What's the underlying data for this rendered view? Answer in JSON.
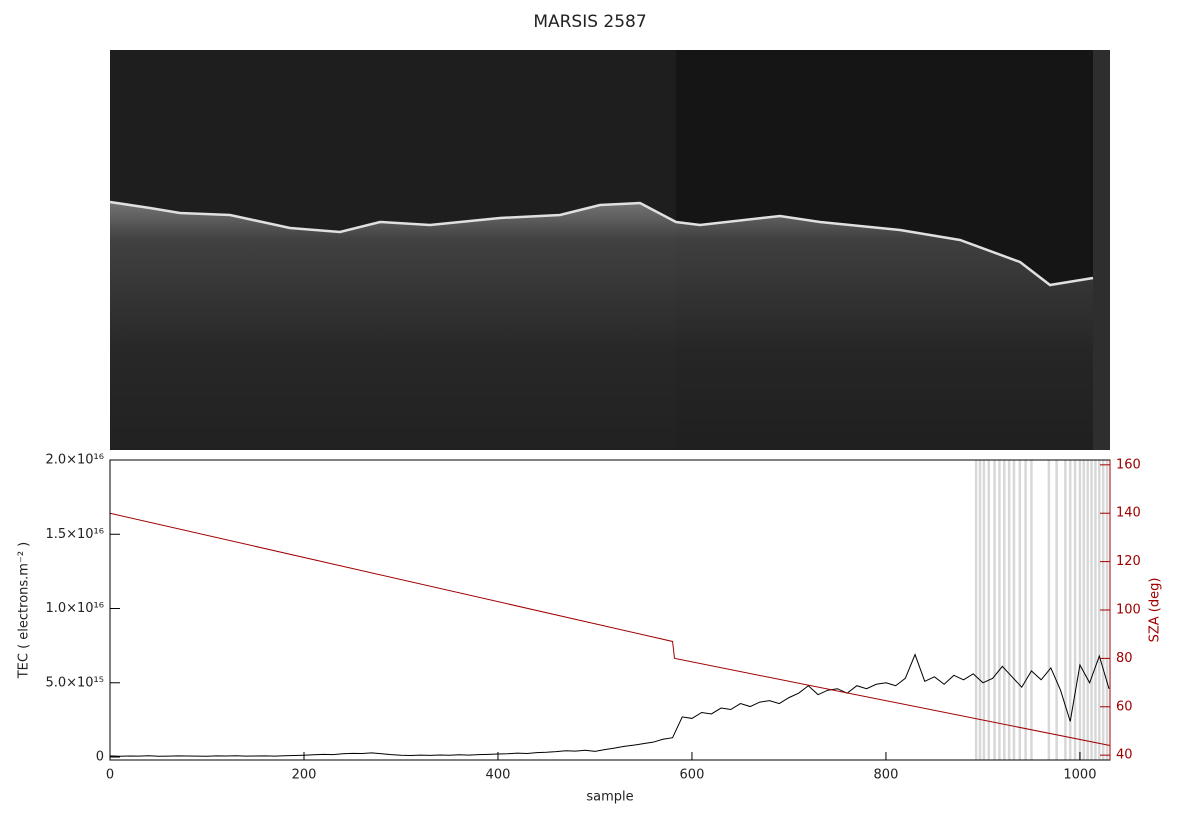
{
  "chart_data": {
    "type": "line",
    "title": "MARSIS 2587",
    "xlabel": "sample",
    "ylabel": "TEC ( electrons.m⁻² )",
    "y2label": "SZA (deg)",
    "xlim": [
      0,
      1031
    ],
    "xticks": [
      0,
      200,
      400,
      600,
      800,
      1000
    ],
    "ylim": [
      -200000000000000.0,
      2e+16
    ],
    "yticks": [
      0,
      {
        "value": 5000000000000000.0,
        "label": "5.0×10¹⁵"
      },
      {
        "value": 1e+16,
        "label": "1.0×10¹⁶"
      },
      {
        "value": 1.5e+16,
        "label": "1.5×10¹⁶"
      },
      {
        "value": 2e+16,
        "label": "2.0×10¹⁶"
      }
    ],
    "y2lim": [
      38,
      162
    ],
    "y2ticks": [
      40,
      60,
      80,
      100,
      120,
      140,
      160
    ],
    "y2color": "#a00000",
    "flagged_samples": [
      893,
      897,
      901,
      906,
      912,
      917,
      922,
      927,
      932,
      938,
      944,
      950,
      968,
      976,
      985,
      990,
      995,
      1000,
      1004,
      1008,
      1012,
      1016,
      1020,
      1024,
      1028
    ],
    "flag_color": "#d8d8d8",
    "series": [
      {
        "color": "#000000",
        "x": [
          0,
          10,
          20,
          30,
          40,
          50,
          60,
          70,
          80,
          90,
          100,
          110,
          120,
          130,
          140,
          150,
          160,
          170,
          180,
          190,
          200,
          210,
          220,
          230,
          240,
          250,
          260,
          270,
          280,
          290,
          300,
          310,
          320,
          330,
          340,
          350,
          360,
          370,
          380,
          390,
          400,
          410,
          420,
          430,
          440,
          450,
          460,
          470,
          480,
          490,
          500,
          510,
          520,
          530,
          540,
          550,
          560,
          570,
          580,
          590,
          600,
          610,
          620,
          630,
          640,
          650,
          660,
          670,
          680,
          690,
          700,
          710,
          720,
          730,
          740,
          750,
          760,
          770,
          780,
          790,
          800,
          810,
          820,
          830,
          840,
          850,
          860,
          870,
          880,
          890,
          900,
          910,
          920,
          930,
          940,
          950,
          960,
          970,
          980,
          990,
          1000,
          1010,
          1020,
          1030
        ],
        "values": [
          80000000000000.0,
          50000000000000.0,
          70000000000000.0,
          60000000000000.0,
          90000000000000.0,
          50000000000000.0,
          60000000000000.0,
          80000000000000.0,
          70000000000000.0,
          60000000000000.0,
          50000000000000.0,
          80000000000000.0,
          70000000000000.0,
          90000000000000.0,
          60000000000000.0,
          70000000000000.0,
          80000000000000.0,
          60000000000000.0,
          90000000000000.0,
          100000000000000.0,
          120000000000000.0,
          150000000000000.0,
          180000000000000.0,
          160000000000000.0,
          220000000000000.0,
          250000000000000.0,
          240000000000000.0,
          280000000000000.0,
          220000000000000.0,
          160000000000000.0,
          120000000000000.0,
          100000000000000.0,
          130000000000000.0,
          110000000000000.0,
          140000000000000.0,
          120000000000000.0,
          150000000000000.0,
          130000000000000.0,
          160000000000000.0,
          180000000000000.0,
          200000000000000.0,
          220000000000000.0,
          260000000000000.0,
          240000000000000.0,
          300000000000000.0,
          320000000000000.0,
          360000000000000.0,
          420000000000000.0,
          400000000000000.0,
          460000000000000.0,
          380000000000000.0,
          500000000000000.0,
          600000000000000.0,
          720000000000000.0,
          800000000000000.0,
          900000000000000.0,
          1000000000000000.0,
          1200000000000000.0,
          1300000000000000.0,
          2700000000000000.0,
          2600000000000000.0,
          3000000000000000.0,
          2900000000000000.0,
          3300000000000000.0,
          3200000000000000.0,
          3600000000000000.0,
          3400000000000000.0,
          3700000000000000.0,
          3800000000000000.0,
          3600000000000000.0,
          4000000000000000.0,
          4300000000000000.0,
          4800000000000000.0,
          4200000000000000.0,
          4500000000000000.0,
          4600000000000000.0,
          4300000000000000.0,
          4800000000000000.0,
          4600000000000000.0,
          4900000000000000.0,
          5000000000000000.0,
          4800000000000000.0,
          5300000000000000.0,
          6900000000000000.0,
          5100000000000000.0,
          5400000000000000.0,
          4900000000000000.0,
          5500000000000000.0,
          5200000000000000.0,
          5600000000000000.0,
          5000000000000000.0,
          5300000000000000.0,
          6100000000000000.0,
          5400000000000000.0,
          4700000000000000.0,
          5800000000000000.0,
          5200000000000000.0,
          6000000000000000.0,
          4500000000000000.0,
          2400000000000000.0,
          6200000000000000.0,
          5000000000000000.0,
          6800000000000000.0,
          4600000000000000.0
        ]
      },
      {
        "color": "#a00000",
        "axis": "y2",
        "x": [
          0,
          580,
          582,
          1031
        ],
        "values": [
          140,
          87,
          80,
          44
        ]
      }
    ]
  }
}
